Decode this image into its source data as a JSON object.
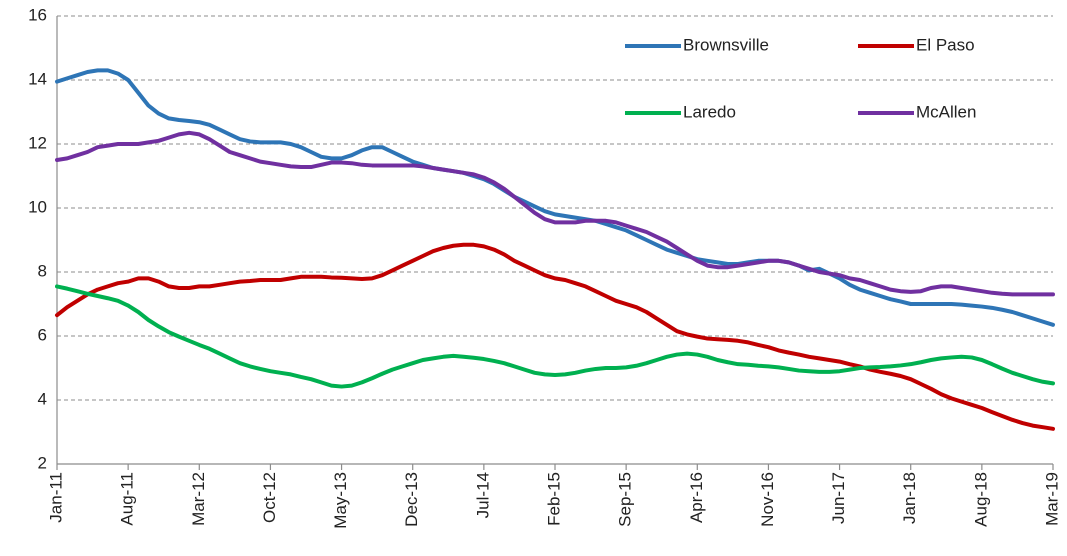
{
  "chart_data": {
    "type": "line",
    "categories": [
      "Jan-11",
      null,
      null,
      null,
      null,
      null,
      null,
      "Aug-11",
      null,
      null,
      null,
      null,
      null,
      null,
      "Mar-12",
      null,
      null,
      null,
      null,
      null,
      null,
      "Oct-12",
      null,
      null,
      null,
      null,
      null,
      null,
      "May-13",
      null,
      null,
      null,
      null,
      null,
      null,
      "Dec-13",
      null,
      null,
      null,
      null,
      null,
      null,
      "Jul-14",
      null,
      null,
      null,
      null,
      null,
      null,
      "Feb-15",
      null,
      null,
      null,
      null,
      null,
      null,
      "Sep-15",
      null,
      null,
      null,
      null,
      null,
      null,
      "Apr-16",
      null,
      null,
      null,
      null,
      null,
      null,
      "Nov-16",
      null,
      null,
      null,
      null,
      null,
      null,
      "Jun-17",
      null,
      null,
      null,
      null,
      null,
      null,
      "Jan-18",
      null,
      null,
      null,
      null,
      null,
      null,
      "Aug-18",
      null,
      null,
      null,
      null,
      null,
      null,
      "Mar-19"
    ],
    "series": [
      {
        "name": "Brownsville",
        "color": "#2E75B6",
        "values": [
          13.95,
          14.05,
          14.15,
          14.25,
          14.3,
          14.3,
          14.2,
          14.0,
          13.6,
          13.2,
          12.95,
          12.8,
          12.75,
          12.72,
          12.68,
          12.6,
          12.45,
          12.3,
          12.15,
          12.08,
          12.05,
          12.05,
          12.05,
          12.0,
          11.9,
          11.75,
          11.6,
          11.55,
          11.55,
          11.65,
          11.8,
          11.9,
          11.9,
          11.75,
          11.6,
          11.45,
          11.35,
          11.25,
          11.2,
          11.15,
          11.1,
          11.0,
          10.9,
          10.75,
          10.55,
          10.35,
          10.2,
          10.05,
          9.9,
          9.8,
          9.75,
          9.7,
          9.65,
          9.6,
          9.5,
          9.4,
          9.3,
          9.15,
          9.0,
          8.85,
          8.7,
          8.6,
          8.5,
          8.4,
          8.35,
          8.3,
          8.25,
          8.25,
          8.3,
          8.35,
          8.35,
          8.35,
          8.3,
          8.2,
          8.05,
          8.1,
          7.95,
          7.8,
          7.6,
          7.45,
          7.35,
          7.25,
          7.15,
          7.08,
          7.0,
          7.0,
          7.0,
          7.0,
          7.0,
          6.98,
          6.95,
          6.92,
          6.88,
          6.82,
          6.75,
          6.65,
          6.55,
          6.45,
          6.35
        ]
      },
      {
        "name": "El Paso",
        "color": "#C00000",
        "values": [
          6.65,
          6.9,
          7.1,
          7.3,
          7.45,
          7.55,
          7.65,
          7.7,
          7.8,
          7.8,
          7.7,
          7.55,
          7.5,
          7.5,
          7.55,
          7.55,
          7.6,
          7.65,
          7.7,
          7.72,
          7.75,
          7.75,
          7.75,
          7.8,
          7.85,
          7.85,
          7.85,
          7.83,
          7.82,
          7.8,
          7.78,
          7.8,
          7.9,
          8.05,
          8.2,
          8.35,
          8.5,
          8.65,
          8.75,
          8.82,
          8.85,
          8.85,
          8.8,
          8.7,
          8.55,
          8.35,
          8.2,
          8.05,
          7.9,
          7.8,
          7.75,
          7.65,
          7.55,
          7.4,
          7.25,
          7.1,
          7.0,
          6.9,
          6.75,
          6.55,
          6.35,
          6.15,
          6.05,
          5.98,
          5.92,
          5.9,
          5.88,
          5.85,
          5.8,
          5.72,
          5.65,
          5.55,
          5.48,
          5.42,
          5.35,
          5.3,
          5.25,
          5.2,
          5.12,
          5.05,
          4.95,
          4.88,
          4.82,
          4.75,
          4.65,
          4.5,
          4.35,
          4.18,
          4.05,
          3.95,
          3.85,
          3.75,
          3.62,
          3.5,
          3.38,
          3.28,
          3.2,
          3.15,
          3.1
        ]
      },
      {
        "name": "Laredo",
        "color": "#00B050",
        "values": [
          7.55,
          7.48,
          7.4,
          7.32,
          7.25,
          7.18,
          7.1,
          6.95,
          6.75,
          6.5,
          6.3,
          6.12,
          5.98,
          5.85,
          5.72,
          5.6,
          5.45,
          5.3,
          5.15,
          5.05,
          4.97,
          4.9,
          4.85,
          4.8,
          4.72,
          4.65,
          4.55,
          4.45,
          4.42,
          4.45,
          4.55,
          4.68,
          4.82,
          4.95,
          5.05,
          5.15,
          5.25,
          5.3,
          5.35,
          5.38,
          5.35,
          5.32,
          5.28,
          5.22,
          5.15,
          5.05,
          4.95,
          4.85,
          4.8,
          4.78,
          4.8,
          4.85,
          4.92,
          4.97,
          5.0,
          5.0,
          5.02,
          5.07,
          5.15,
          5.25,
          5.35,
          5.42,
          5.45,
          5.42,
          5.35,
          5.25,
          5.18,
          5.12,
          5.1,
          5.07,
          5.05,
          5.02,
          4.97,
          4.92,
          4.9,
          4.88,
          4.88,
          4.9,
          4.95,
          5.0,
          5.02,
          5.03,
          5.05,
          5.08,
          5.12,
          5.18,
          5.25,
          5.3,
          5.33,
          5.35,
          5.33,
          5.25,
          5.12,
          4.98,
          4.85,
          4.75,
          4.65,
          4.57,
          4.52
        ]
      },
      {
        "name": "McAllen",
        "color": "#7030A0",
        "values": [
          11.5,
          11.55,
          11.65,
          11.75,
          11.9,
          11.95,
          12.0,
          12.0,
          12.0,
          12.05,
          12.1,
          12.2,
          12.3,
          12.35,
          12.3,
          12.15,
          11.95,
          11.75,
          11.65,
          11.55,
          11.45,
          11.4,
          11.35,
          11.3,
          11.28,
          11.28,
          11.35,
          11.42,
          11.42,
          11.4,
          11.35,
          11.33,
          11.33,
          11.33,
          11.33,
          11.33,
          11.3,
          11.25,
          11.2,
          11.15,
          11.1,
          11.05,
          10.95,
          10.8,
          10.6,
          10.35,
          10.1,
          9.85,
          9.65,
          9.55,
          9.55,
          9.55,
          9.6,
          9.6,
          9.6,
          9.55,
          9.45,
          9.35,
          9.25,
          9.1,
          8.95,
          8.75,
          8.55,
          8.35,
          8.2,
          8.15,
          8.15,
          8.2,
          8.25,
          8.3,
          8.35,
          8.35,
          8.3,
          8.2,
          8.1,
          8.0,
          7.95,
          7.9,
          7.8,
          7.75,
          7.65,
          7.55,
          7.45,
          7.4,
          7.38,
          7.4,
          7.5,
          7.55,
          7.55,
          7.5,
          7.45,
          7.4,
          7.35,
          7.32,
          7.3,
          7.3,
          7.3,
          7.3,
          7.3
        ]
      }
    ],
    "ylim": [
      2,
      16
    ],
    "yticks": [
      2,
      4,
      6,
      8,
      10,
      12,
      14,
      16
    ],
    "grid": true
  }
}
